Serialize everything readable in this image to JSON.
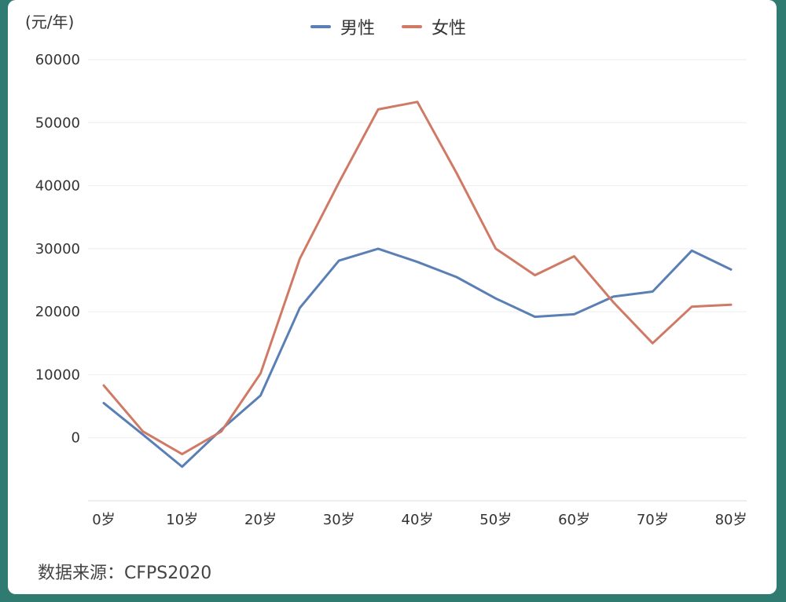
{
  "chart_data": {
    "type": "line",
    "unit_label": "(元/年)",
    "source": "数据来源：CFPS2020",
    "x": [
      0,
      5,
      10,
      15,
      20,
      25,
      30,
      35,
      40,
      45,
      50,
      55,
      60,
      65,
      70,
      75,
      80
    ],
    "x_tick_labels": [
      "0岁",
      "10岁",
      "20岁",
      "30岁",
      "40岁",
      "50岁",
      "60岁",
      "70岁",
      "80岁"
    ],
    "x_ticks": [
      0,
      10,
      20,
      30,
      40,
      50,
      60,
      70,
      80
    ],
    "xlim": [
      -2,
      82
    ],
    "ylim": [
      -10000,
      60000
    ],
    "y_ticks": [
      0,
      10000,
      20000,
      30000,
      40000,
      50000,
      60000
    ],
    "grid": true,
    "legend_position": "top-center",
    "series": [
      {
        "name": "男性",
        "color": "#5a7fb5",
        "values": [
          5500,
          500,
          -4600,
          1300,
          6700,
          20600,
          28100,
          30000,
          27900,
          25500,
          22100,
          19200,
          19600,
          22400,
          23200,
          29700,
          26700
        ]
      },
      {
        "name": "女性",
        "color": "#d07a66",
        "values": [
          8300,
          1000,
          -2600,
          1000,
          10200,
          28400,
          40500,
          52100,
          53300,
          42000,
          30000,
          25800,
          28800,
          21500,
          15000,
          20800,
          21100
        ]
      }
    ]
  }
}
